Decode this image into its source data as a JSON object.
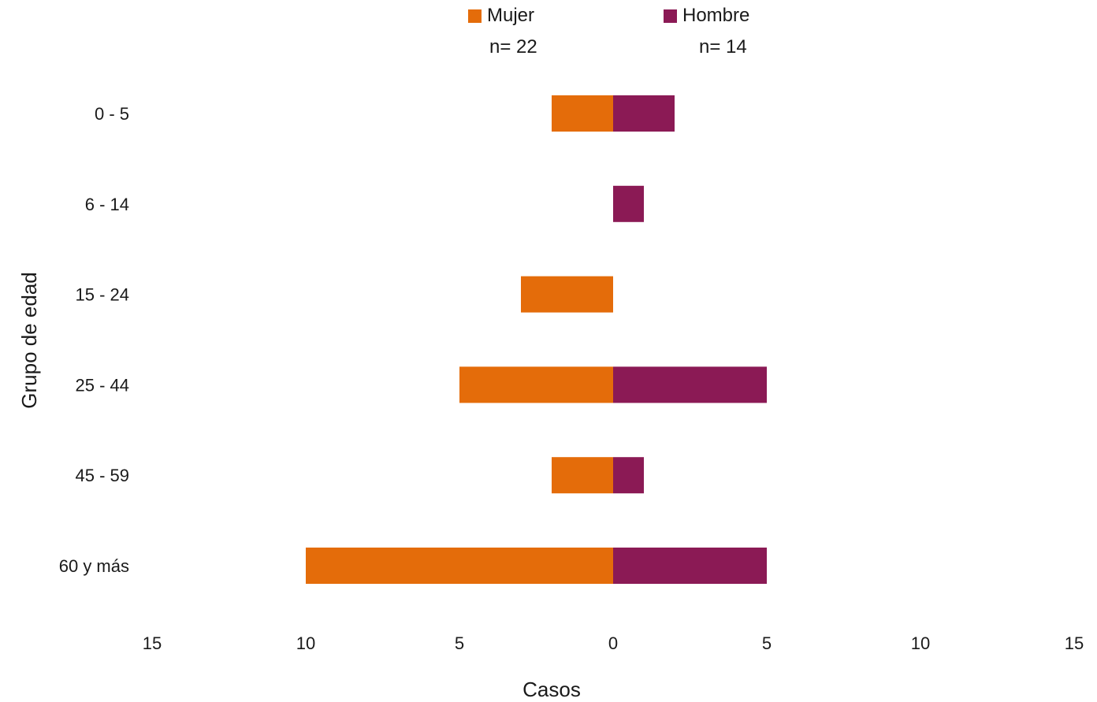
{
  "chart_data": {
    "type": "bar",
    "orientation": "horizontal",
    "layout": "population-pyramid",
    "categories": [
      "0 - 5",
      "6 - 14",
      "15 - 24",
      "25 - 44",
      "45 - 59",
      "60 y más"
    ],
    "series": [
      {
        "name": "Mujer",
        "n_label": "n= 22",
        "side": "left",
        "color": "#E46C0A",
        "values": [
          2,
          0,
          3,
          5,
          2,
          10
        ]
      },
      {
        "name": "Hombre",
        "n_label": "n= 14",
        "side": "right",
        "color": "#8B1A55",
        "values": [
          2,
          1,
          0,
          5,
          1,
          5
        ]
      }
    ],
    "xlabel": "Casos",
    "ylabel": "Grupo de edad",
    "xlim": [
      -15,
      15
    ],
    "xticks": [
      -15,
      -10,
      -5,
      0,
      5,
      10,
      15
    ],
    "xtick_labels": [
      "15",
      "10",
      "5",
      "0",
      "5",
      "10",
      "15"
    ],
    "grid": false,
    "legend_position": "top"
  }
}
